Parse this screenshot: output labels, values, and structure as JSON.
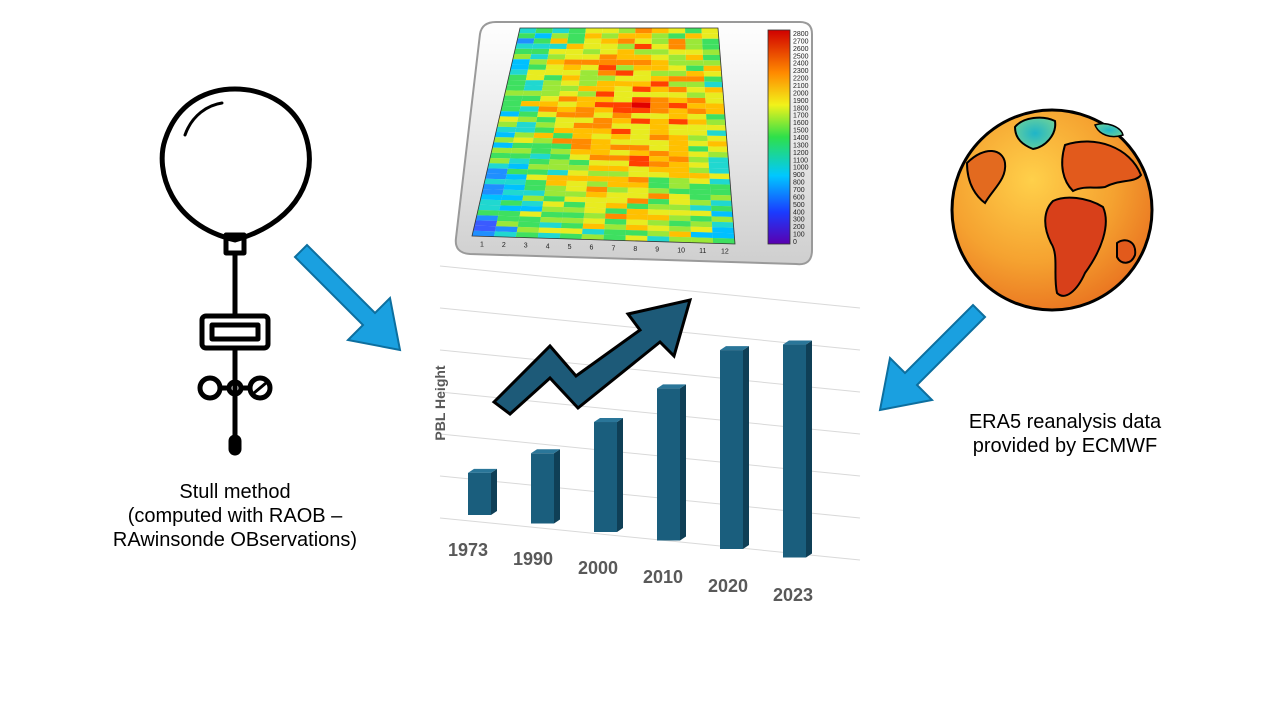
{
  "captions": {
    "left_line1": "Stull method",
    "left_line2": "(computed with RAOB –",
    "left_line3": "RAwinsonde OBservations)",
    "right_line1": "ERA5 reanalysis data",
    "right_line2": "provided by ECMWF"
  },
  "colors": {
    "bar": "#1a5e7d",
    "bar_side": "#0f3f56",
    "arrow_blue": "#1aa0e0",
    "trend_arrow": "#1d5a78"
  },
  "icons": {
    "balloon": "weather-balloon-icon",
    "globe": "earth-globe-icon",
    "heatmap": "heatmap-image"
  },
  "heatmap": {
    "colorbar_ticks": [
      "2800",
      "2700",
      "2600",
      "2500",
      "2400",
      "2300",
      "2200",
      "2100",
      "2000",
      "1900",
      "1800",
      "1700",
      "1600",
      "1500",
      "1400",
      "1300",
      "1200",
      "1100",
      "1000",
      "900",
      "800",
      "700",
      "600",
      "500",
      "400",
      "300",
      "200",
      "100",
      "0"
    ],
    "x_ticks": [
      "1",
      "2",
      "3",
      "4",
      "5",
      "6",
      "7",
      "8",
      "9",
      "10",
      "11",
      "12"
    ]
  },
  "chart_data": {
    "type": "bar",
    "ylabel": "PBL Height",
    "categories": [
      "1973",
      "1990",
      "2000",
      "2010",
      "2020",
      "2023"
    ],
    "values": [
      18,
      30,
      47,
      65,
      85,
      91
    ],
    "ylim": [
      0,
      100
    ],
    "grid": true
  }
}
